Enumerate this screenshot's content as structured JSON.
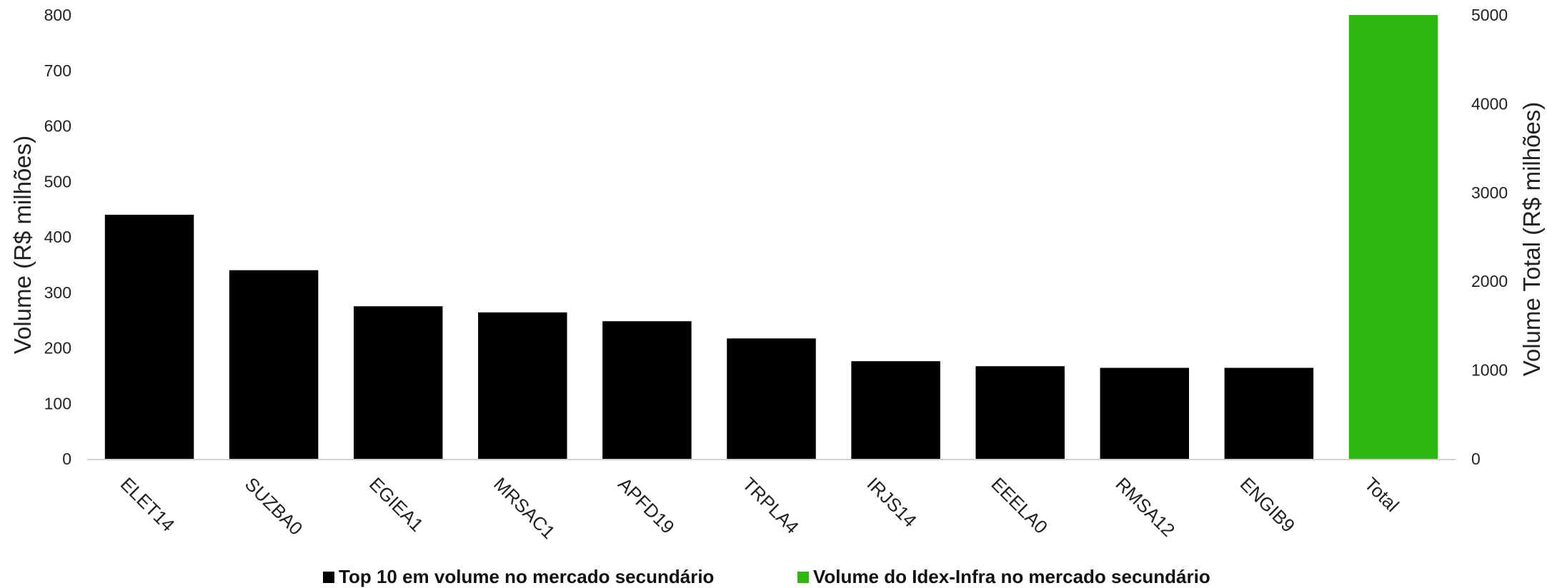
{
  "chart_data": {
    "type": "bar",
    "categories": [
      "ELET14",
      "SUZBA0",
      "EGIEA1",
      "MRSAC1",
      "APFD19",
      "TRPLA4",
      "IRJS14",
      "EEELA0",
      "RMSA12",
      "ENGIB9",
      "Total"
    ],
    "series": [
      {
        "name": "Top 10 em volume no mercado secundário",
        "axis": "left",
        "color": "#000000",
        "values": [
          440,
          340,
          275,
          264,
          248,
          217,
          176,
          167,
          164,
          164,
          null
        ]
      },
      {
        "name": "Volume do Idex-Infra no mercado secundário",
        "axis": "right",
        "color": "#2db80f",
        "values": [
          null,
          null,
          null,
          null,
          null,
          null,
          null,
          null,
          null,
          null,
          5000
        ]
      }
    ],
    "ylabel": "Volume (R$ milhões)",
    "ylabel_right": "Volume Total (R$ milhões)",
    "ylim": [
      0,
      800
    ],
    "ylim_right": [
      0,
      5000
    ],
    "yticks": [
      "0",
      "100",
      "200",
      "300",
      "400",
      "500",
      "600",
      "700",
      "800"
    ],
    "yticks_right": [
      "0",
      "1000",
      "2000",
      "3000",
      "4000",
      "5000"
    ],
    "legend_position": "bottom",
    "grid": false
  }
}
